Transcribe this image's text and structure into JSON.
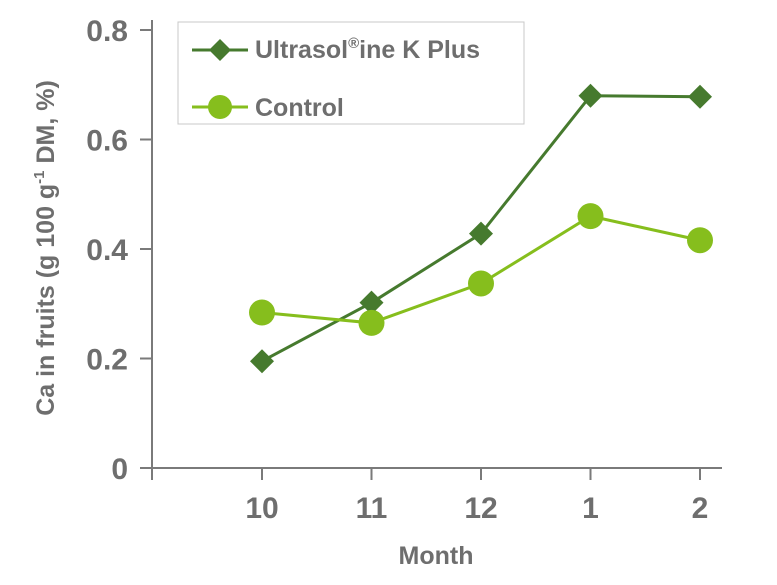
{
  "chart_data": {
    "type": "line",
    "title": "",
    "xlabel": "Month",
    "ylabel_parts": [
      "Ca in fruits (g 100 g",
      "-1",
      " DM, %)"
    ],
    "categories": [
      "10",
      "11",
      "12",
      "1",
      "2"
    ],
    "ylim": [
      0,
      0.8
    ],
    "yticks": [
      0,
      0.2,
      0.4,
      0.6,
      0.8
    ],
    "ytick_labels": [
      "0",
      "0.2",
      "0.4",
      "0.6",
      "0.8"
    ],
    "grid": false,
    "legend_position": "top-left",
    "series": [
      {
        "name_parts": [
          "Ultrasol",
          "®",
          "ine K Plus"
        ],
        "marker": "diamond",
        "color": "#467a2e",
        "values": [
          0.195,
          0.302,
          0.428,
          0.68,
          0.678
        ]
      },
      {
        "name": "Control",
        "marker": "circle",
        "color": "#86be1d",
        "values": [
          0.284,
          0.265,
          0.337,
          0.46,
          0.416
        ]
      }
    ]
  }
}
